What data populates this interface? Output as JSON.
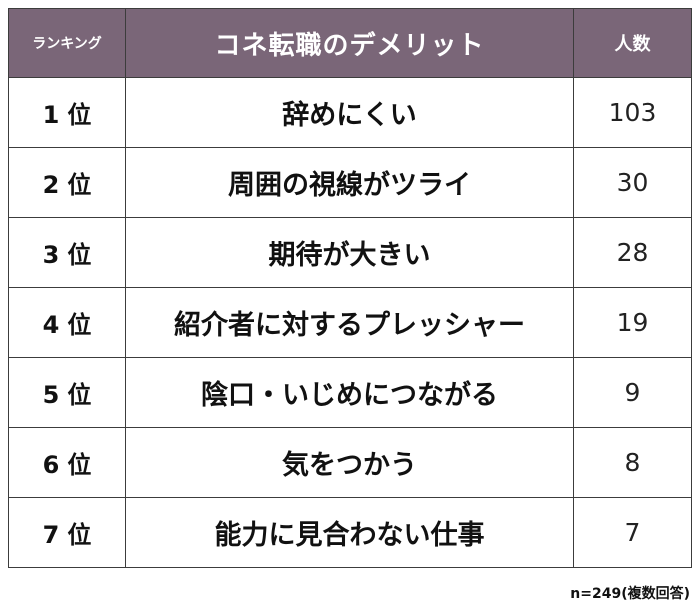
{
  "header": {
    "rank_label": "ランキング",
    "item_label": "コネ転職のデメリット",
    "count_label": "人数"
  },
  "rows": [
    {
      "rank": "1",
      "rank_suffix": "位",
      "item": "辞めにくい",
      "count": "103"
    },
    {
      "rank": "2",
      "rank_suffix": "位",
      "item": "周囲の視線がツライ",
      "count": "30"
    },
    {
      "rank": "3",
      "rank_suffix": "位",
      "item": "期待が大きい",
      "count": "28"
    },
    {
      "rank": "4",
      "rank_suffix": "位",
      "item": "紹介者に対するプレッシャー",
      "count": "19"
    },
    {
      "rank": "5",
      "rank_suffix": "位",
      "item": "陰口・いじめにつながる",
      "count": "9"
    },
    {
      "rank": "6",
      "rank_suffix": "位",
      "item": "気をつかう",
      "count": "8"
    },
    {
      "rank": "7",
      "rank_suffix": "位",
      "item": "能力に見合わない仕事",
      "count": "7"
    }
  ],
  "footnote": "n=249(複数回答)",
  "colors": {
    "header_background": "#7a6678",
    "header_text": "#ffffff",
    "border": "#3c3c3c"
  }
}
